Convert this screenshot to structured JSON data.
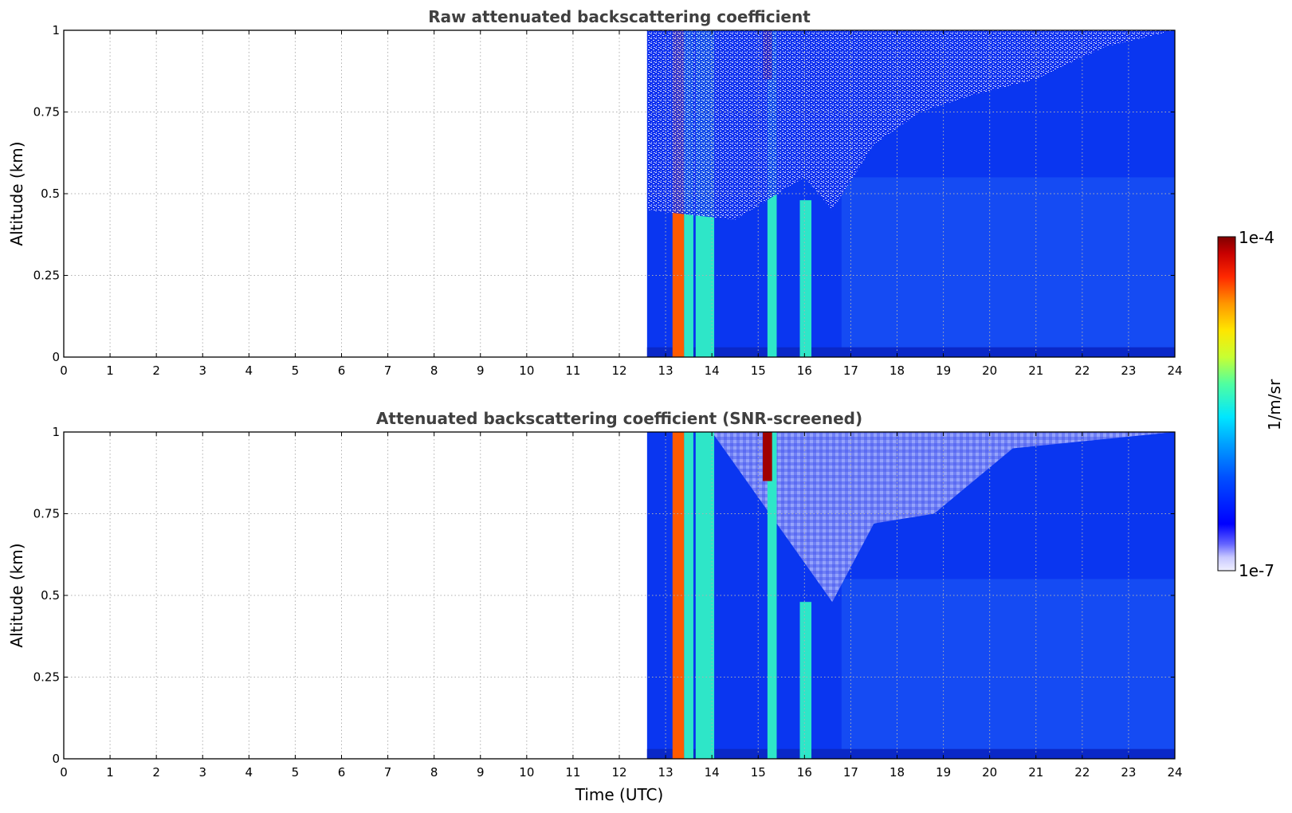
{
  "chart_data": [
    {
      "type": "heatmap",
      "title": "Raw attenuated backscattering coefficient",
      "xlabel": "",
      "ylabel": "Altitude (km)",
      "xlim": [
        0,
        24
      ],
      "ylim": [
        0,
        1
      ],
      "xticks": [
        "0",
        "1",
        "2",
        "3",
        "4",
        "5",
        "6",
        "7",
        "8",
        "9",
        "10",
        "11",
        "12",
        "13",
        "14",
        "15",
        "16",
        "17",
        "18",
        "19",
        "20",
        "21",
        "22",
        "23",
        "24"
      ],
      "yticks": [
        "0",
        "0.25",
        "0.5",
        "0.75",
        "1"
      ],
      "grid": true,
      "data_start_time": 12.6,
      "features": [
        {
          "x_start": 13.15,
          "x_end": 13.4,
          "y_top": 1.0,
          "level": "high"
        },
        {
          "x_start": 13.4,
          "x_end": 13.6,
          "y_top": 1.0,
          "level": "medium"
        },
        {
          "x_start": 13.65,
          "x_end": 14.05,
          "y_top": 1.0,
          "level": "medium"
        },
        {
          "x_start": 15.2,
          "x_end": 15.4,
          "y_top": 1.0,
          "level": "medium"
        },
        {
          "x_start": 15.9,
          "x_end": 16.15,
          "y_top": 0.48,
          "level": "medium"
        },
        {
          "x_start": 15.1,
          "x_end": 15.3,
          "y_top": 1.0,
          "y_bottom": 0.85,
          "level": "very high"
        }
      ],
      "noisy_region_boundary": [
        [
          12.6,
          0.45
        ],
        [
          14.5,
          0.42
        ],
        [
          16.0,
          0.55
        ],
        [
          16.6,
          0.45
        ],
        [
          17.5,
          0.65
        ],
        [
          18.5,
          0.75
        ],
        [
          19.6,
          0.8
        ],
        [
          21.0,
          0.85
        ],
        [
          22.5,
          0.95
        ],
        [
          24,
          1.0
        ]
      ]
    },
    {
      "type": "heatmap",
      "title": "Attenuated backscattering coefficient (SNR-screened)",
      "xlabel": "Time (UTC)",
      "ylabel": "Altitude (km)",
      "xlim": [
        0,
        24
      ],
      "ylim": [
        0,
        1
      ],
      "xticks": [
        "0",
        "1",
        "2",
        "3",
        "4",
        "5",
        "6",
        "7",
        "8",
        "9",
        "10",
        "11",
        "12",
        "13",
        "14",
        "15",
        "16",
        "17",
        "18",
        "19",
        "20",
        "21",
        "22",
        "23",
        "24"
      ],
      "yticks": [
        "0",
        "0.25",
        "0.5",
        "0.75",
        "1"
      ],
      "grid": true,
      "data_start_time": 12.6,
      "screened_region_boundary": [
        [
          14.0,
          1.0
        ],
        [
          15.0,
          0.8
        ],
        [
          16.6,
          0.48
        ],
        [
          17.5,
          0.72
        ],
        [
          18.8,
          0.75
        ],
        [
          20.5,
          0.95
        ],
        [
          24,
          1.0
        ]
      ]
    }
  ],
  "colorbar": {
    "label": "1/m/sr",
    "max_label": "1e-4",
    "min_label": "1e-7",
    "colormap": "jet",
    "scale": "log"
  },
  "colors": {
    "background_blue": "#0a36f0",
    "light_screened": "#a0a8f8",
    "title_gray": "#404040"
  }
}
